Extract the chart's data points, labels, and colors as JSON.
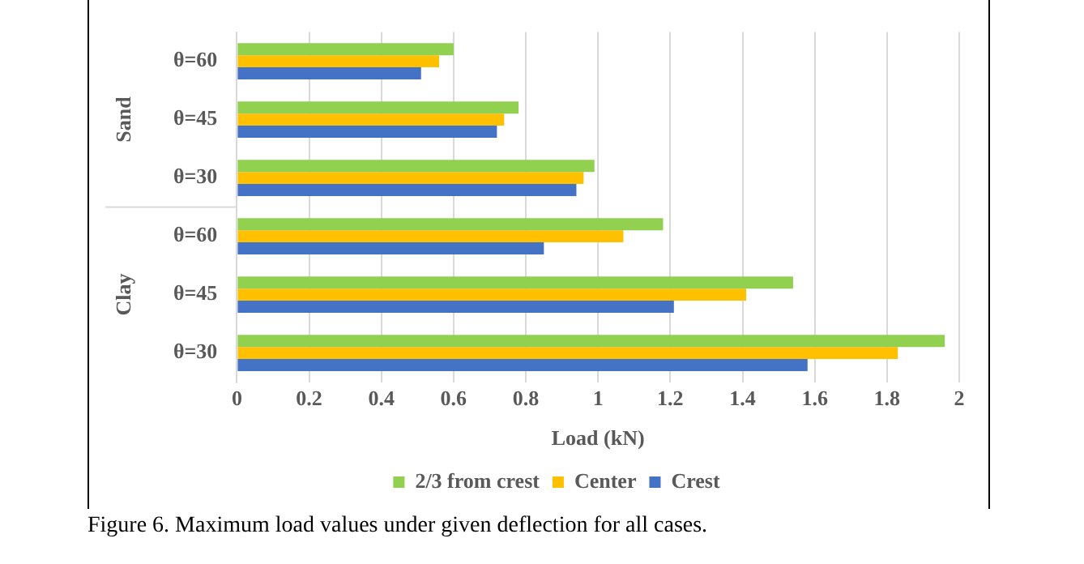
{
  "chart_data": {
    "type": "bar",
    "orientation": "horizontal",
    "categories": [
      "θ=60",
      "θ=45",
      "θ=30",
      "θ=60",
      "θ=45",
      "θ=30"
    ],
    "series": [
      {
        "name": "2/3 from crest",
        "color": "#92d050",
        "values": [
          0.6,
          0.78,
          0.99,
          1.18,
          1.54,
          1.96
        ]
      },
      {
        "name": "Center",
        "color": "#ffc000",
        "values": [
          0.56,
          0.74,
          0.96,
          1.07,
          1.41,
          1.83
        ]
      },
      {
        "name": "Crest",
        "color": "#4472c4",
        "values": [
          0.51,
          0.72,
          0.94,
          0.85,
          1.21,
          1.58
        ]
      }
    ],
    "xlabel": "Load (kN)",
    "xlim": [
      0,
      2
    ],
    "xticks": [
      0,
      0.2,
      0.4,
      0.6,
      0.8,
      1,
      1.2,
      1.4,
      1.6,
      1.8,
      2
    ],
    "grid": "x",
    "legend": "bottom",
    "annotations": [
      "Sand",
      "Clay",
      "Figure 6. Maximum load values under given deflection for all cases."
    ]
  }
}
